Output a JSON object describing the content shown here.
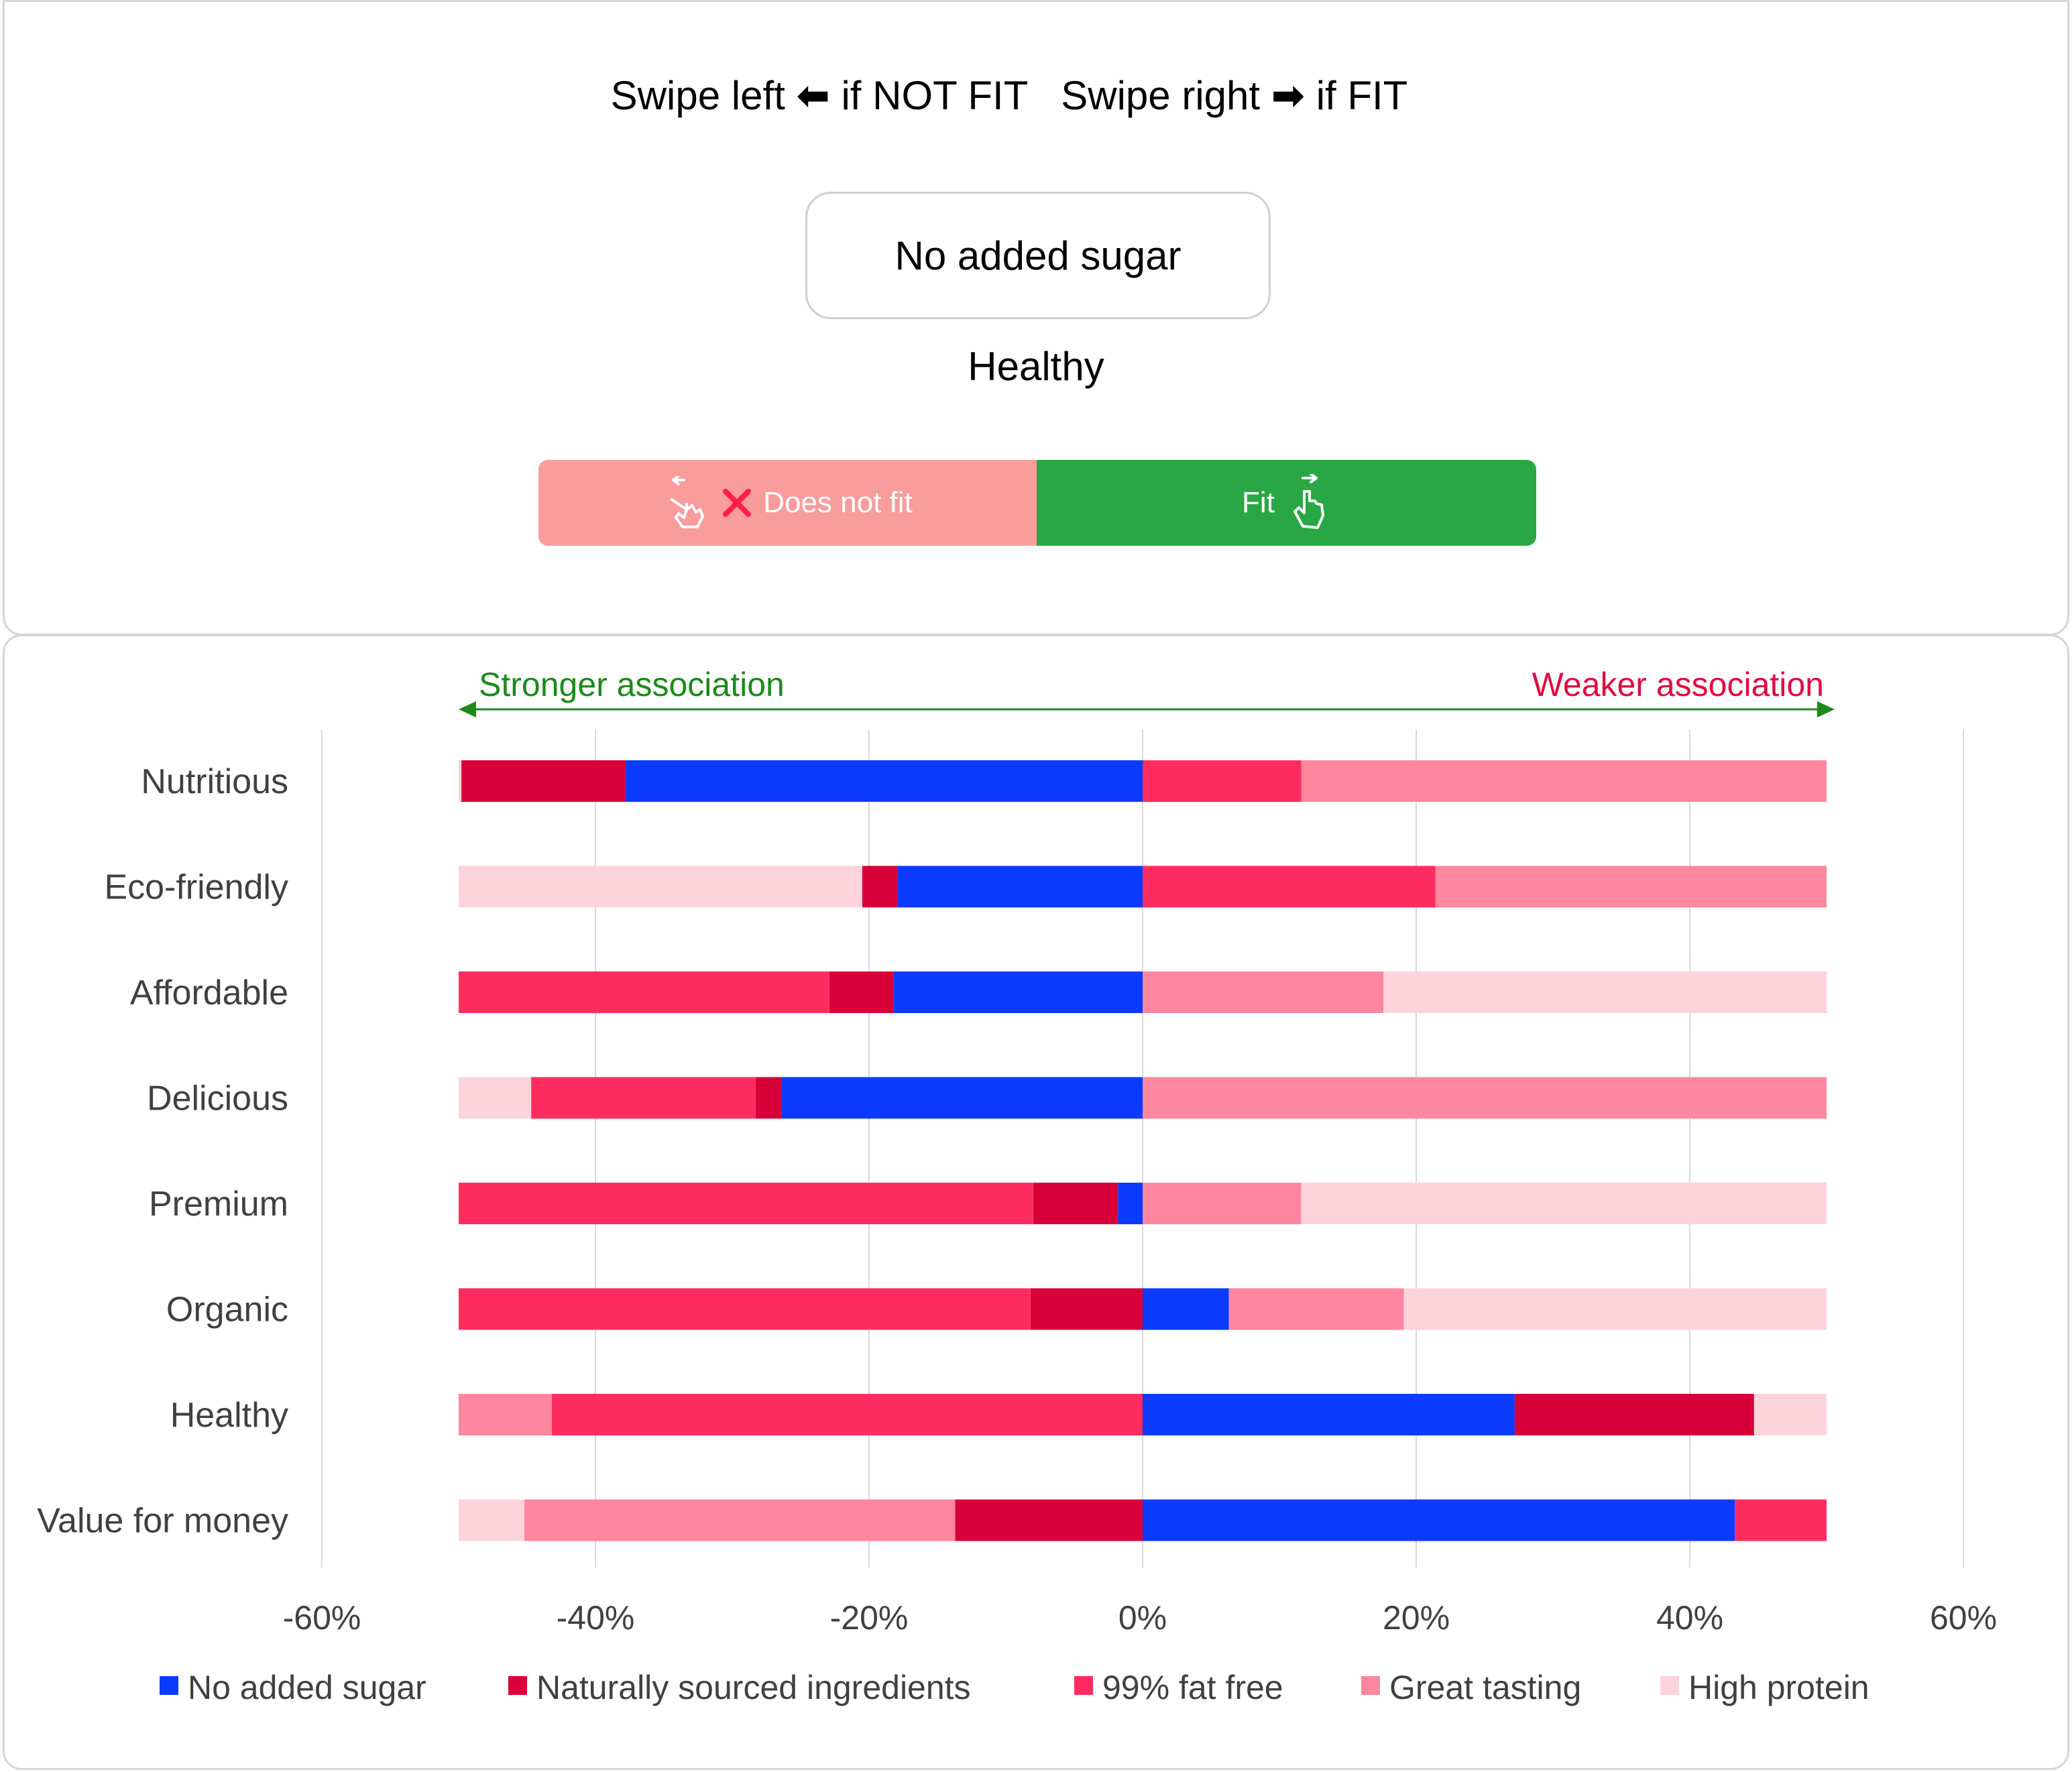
{
  "instruction": {
    "left_text": "Swipe left",
    "left_arrow": "⬅",
    "not_fit_text": "if NOT FIT",
    "right_text": "Swipe right",
    "right_arrow": "➡",
    "fit_text": "if FIT"
  },
  "current_card": "No added sugar",
  "next_card": "Healthy",
  "buttons": {
    "does_not_fit": "Does not fit",
    "fit": "Fit",
    "icons": [
      "swipe-left-hand-icon",
      "cross-icon",
      "swipe-right-hand-icon"
    ]
  },
  "colors": {
    "no_added_sugar": "#0a3bff",
    "naturally_sourced": "#d70038",
    "fat_free": "#ff2d5f",
    "great_tasting": "#ff869f",
    "high_protein": "#fdd3dc",
    "strong": "#1a8a1a",
    "weak": "#e00b40",
    "fit_button": "#29a744",
    "not_fit_button": "#f89c9c"
  },
  "chart_data": {
    "type": "bar",
    "orientation": "horizontal",
    "stacked": true,
    "annotation_left": "Stronger association",
    "annotation_right": "Weaker association",
    "xlim": [
      -60,
      60
    ],
    "xticks": [
      -60,
      -40,
      -20,
      0,
      20,
      40,
      60
    ],
    "xtick_labels": [
      "-60%",
      "-40%",
      "-20%",
      "0%",
      "20%",
      "40%",
      "60%"
    ],
    "gridlines": true,
    "legend_position": "bottom",
    "categories": [
      "Nutritious",
      "Eco-friendly",
      "Affordable",
      "Delicious",
      "Premium",
      "Organic",
      "Healthy",
      "Value for money"
    ],
    "series": [
      {
        "name": "No added sugar",
        "color_key": "no_added_sugar"
      },
      {
        "name": "Naturally sourced ingredients",
        "color_key": "naturally_sourced"
      },
      {
        "name": "99% fat free",
        "color_key": "fat_free"
      },
      {
        "name": "Great tasting",
        "color_key": "great_tasting"
      },
      {
        "name": "High protein",
        "color_key": "high_protein"
      }
    ],
    "bars": [
      {
        "category": "Nutritious",
        "segments": [
          {
            "series": "No added sugar",
            "start": -37.8,
            "end": 0
          },
          {
            "series": "Naturally sourced ingredients",
            "start": -49.8,
            "end": -37.8
          },
          {
            "series": "High protein",
            "start": -50,
            "end": -49.8
          },
          {
            "series": "99% fat free",
            "start": 0,
            "end": 11.6
          },
          {
            "series": "Great tasting",
            "start": 11.6,
            "end": 50
          }
        ]
      },
      {
        "category": "Eco-friendly",
        "segments": [
          {
            "series": "No added sugar",
            "start": -17.9,
            "end": 0
          },
          {
            "series": "Naturally sourced ingredients",
            "start": -20.5,
            "end": -17.9
          },
          {
            "series": "High protein",
            "start": -50,
            "end": -20.5
          },
          {
            "series": "99% fat free",
            "start": 0,
            "end": 21.4
          },
          {
            "series": "Great tasting",
            "start": 21.4,
            "end": 50
          }
        ]
      },
      {
        "category": "Affordable",
        "segments": [
          {
            "series": "No added sugar",
            "start": -18.2,
            "end": 0
          },
          {
            "series": "Naturally sourced ingredients",
            "start": -22.9,
            "end": -18.2
          },
          {
            "series": "99% fat free",
            "start": -50,
            "end": -22.9
          },
          {
            "series": "Great tasting",
            "start": 0,
            "end": 17.6
          },
          {
            "series": "High protein",
            "start": 17.6,
            "end": 50
          }
        ]
      },
      {
        "category": "Delicious",
        "segments": [
          {
            "series": "No added sugar",
            "start": -26.4,
            "end": 0
          },
          {
            "series": "Naturally sourced ingredients",
            "start": -28.3,
            "end": -26.4
          },
          {
            "series": "99% fat free",
            "start": -44.7,
            "end": -28.3
          },
          {
            "series": "High protein",
            "start": -50,
            "end": -44.7
          },
          {
            "series": "Great tasting",
            "start": 0,
            "end": 50
          }
        ]
      },
      {
        "category": "Premium",
        "segments": [
          {
            "series": "No added sugar",
            "start": -1.8,
            "end": 0
          },
          {
            "series": "Naturally sourced ingredients",
            "start": -8.0,
            "end": -1.8
          },
          {
            "series": "99% fat free",
            "start": -50,
            "end": -8.0
          },
          {
            "series": "Great tasting",
            "start": 0,
            "end": 11.6
          },
          {
            "series": "High protein",
            "start": 11.6,
            "end": 50
          }
        ]
      },
      {
        "category": "Organic",
        "segments": [
          {
            "series": "Naturally sourced ingredients",
            "start": -8.2,
            "end": 0
          },
          {
            "series": "99% fat free",
            "start": -50,
            "end": -8.2
          },
          {
            "series": "No added sugar",
            "start": 0,
            "end": 6.3
          },
          {
            "series": "Great tasting",
            "start": 6.3,
            "end": 19.1
          },
          {
            "series": "High protein",
            "start": 19.1,
            "end": 50
          }
        ]
      },
      {
        "category": "Healthy",
        "segments": [
          {
            "series": "99% fat free",
            "start": -43.2,
            "end": 0
          },
          {
            "series": "Great tasting",
            "start": -50,
            "end": -43.2
          },
          {
            "series": "No added sugar",
            "start": 0,
            "end": 27.2
          },
          {
            "series": "Naturally sourced ingredients",
            "start": 27.2,
            "end": 44.7
          },
          {
            "series": "High protein",
            "start": 44.7,
            "end": 50
          }
        ]
      },
      {
        "category": "Value for money",
        "segments": [
          {
            "series": "Naturally sourced ingredients",
            "start": -13.7,
            "end": 0
          },
          {
            "series": "Great tasting",
            "start": -45.2,
            "end": -13.7
          },
          {
            "series": "High protein",
            "start": -50,
            "end": -45.2
          },
          {
            "series": "No added sugar",
            "start": 0,
            "end": 43.3
          },
          {
            "series": "99% fat free",
            "start": 43.3,
            "end": 50
          }
        ]
      }
    ]
  }
}
